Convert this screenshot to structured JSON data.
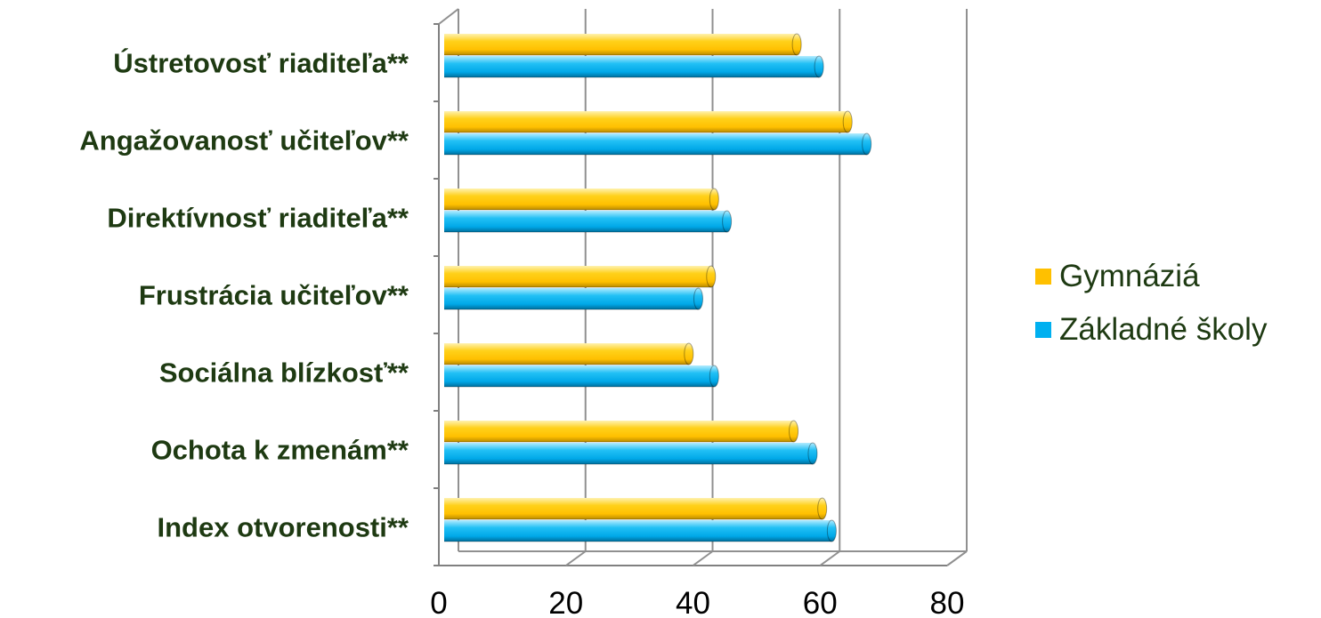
{
  "chart_data": {
    "type": "bar",
    "orientation": "horizontal",
    "style": "3d-cylinder",
    "categories": [
      "Ústretovosť riaditeľa**",
      "Angažovanosť učiteľov**",
      "Direktívnosť riaditeľa**",
      "Frustrácia učiteľov**",
      "Sociálna blízkosť**",
      "Ochota k zmenám**",
      "Index otvorenosti**"
    ],
    "series": [
      {
        "name": "Gymnáziá",
        "color": "#ffc000",
        "values": [
          55.5,
          63.5,
          42.5,
          42,
          38.5,
          55,
          59.5
        ]
      },
      {
        "name": "Základné školy",
        "color": "#00b0f0",
        "values": [
          59,
          66.5,
          44.5,
          40,
          42.5,
          58,
          61
        ]
      }
    ],
    "xlim": [
      0,
      80
    ],
    "xticks": [
      "0",
      "20",
      "40",
      "60",
      "80"
    ],
    "grid": true,
    "legend": "right"
  }
}
